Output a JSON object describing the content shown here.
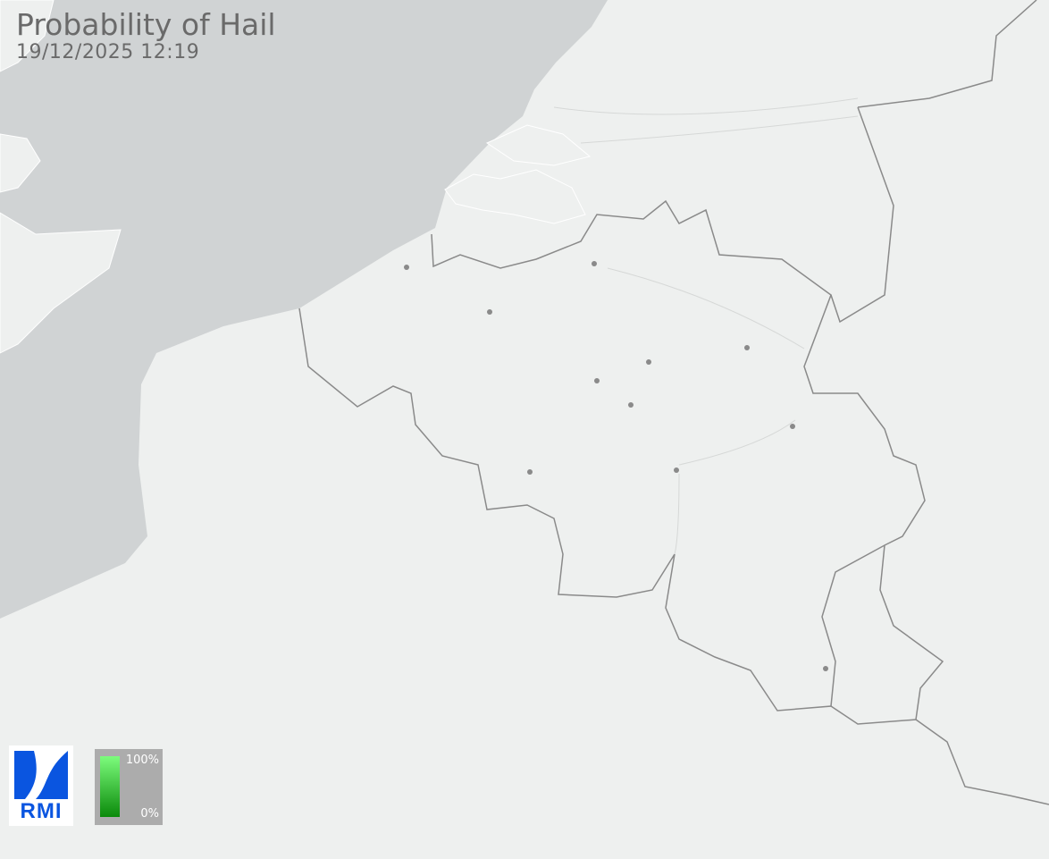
{
  "header": {
    "title": "Probability of Hail",
    "timestamp": "19/12/2025 12:19"
  },
  "logo": {
    "text": "RMI"
  },
  "legend": {
    "max_label": "100%",
    "min_label": "0%",
    "color_max": "#7dfc7d",
    "color_min": "#0a8a0a"
  },
  "map": {
    "sea_color": "#d0d3d4",
    "land_color": "#eef0ef",
    "border_color": "#8a8a8a",
    "city_color": "#8a8a8a",
    "hail_probability_shown": 0
  }
}
